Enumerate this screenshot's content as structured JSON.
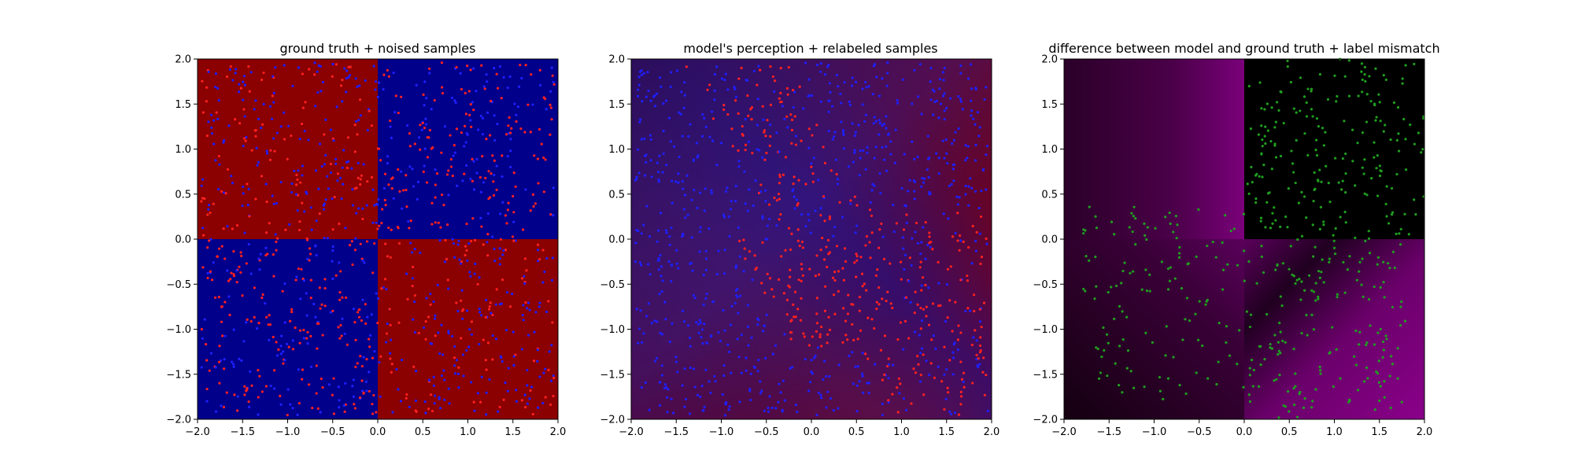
{
  "chart_data": [
    {
      "type": "heatmap",
      "title": "ground truth + noised samples",
      "xlabel": "",
      "ylabel": "",
      "xlim": [
        -2.0,
        2.0
      ],
      "ylim": [
        -2.0,
        2.0
      ],
      "xticks": [
        "−2.0",
        "−1.5",
        "−1.0",
        "−0.5",
        "0.0",
        "0.5",
        "1.0",
        "1.5",
        "2.0"
      ],
      "yticks": [
        "−2.0",
        "−1.5",
        "−1.0",
        "−0.5",
        "0.0",
        "0.5",
        "1.0",
        "1.5",
        "2.0"
      ],
      "grid": false,
      "background": {
        "description_free_regions": [
          {
            "x": [
              0,
              2
            ],
            "y": [
              0,
              2
            ],
            "color": "#00008b"
          },
          {
            "x": [
              -2,
              0
            ],
            "y": [
              -2,
              0
            ],
            "color": "#00008b"
          },
          {
            "x": [
              -2,
              0
            ],
            "y": [
              0,
              2
            ],
            "color": "#8b0000"
          },
          {
            "x": [
              0,
              2
            ],
            "y": [
              -2,
              0
            ],
            "color": "#8b0000"
          }
        ]
      },
      "series": [
        {
          "color": "#1f1fff",
          "values": "blue samples, approx. 700 points"
        },
        {
          "color": "#ff2020",
          "values": "red samples, approx. 600 points"
        }
      ]
    },
    {
      "type": "heatmap",
      "title": "model's perception + relabeled samples",
      "xlabel": "",
      "ylabel": "",
      "xlim": [
        -2.0,
        2.0
      ],
      "ylim": [
        -2.0,
        2.0
      ],
      "xticks": [
        "−2.0",
        "−1.5",
        "−1.0",
        "−0.5",
        "0.0",
        "0.5",
        "1.0",
        "1.5",
        "2.0"
      ],
      "yticks": [
        "−2.0",
        "−1.5",
        "−1.0",
        "−0.5",
        "0.0",
        "0.5",
        "1.0",
        "1.5",
        "2.0"
      ],
      "grid": false,
      "colors": {
        "blue": "#2a0d6a",
        "red": "#8b0000"
      },
      "series": [
        {
          "color": "#1f1fff",
          "values": "blue samples"
        },
        {
          "color": "#ff2020",
          "values": "red samples"
        }
      ]
    },
    {
      "type": "heatmap",
      "title": "difference between model and ground truth + label mismatch",
      "xlabel": "",
      "ylabel": "",
      "xlim": [
        -2.0,
        2.0
      ],
      "ylim": [
        -2.0,
        2.0
      ],
      "xticks": [
        "−2.0",
        "−1.5",
        "−1.0",
        "−0.5",
        "0.0",
        "0.5",
        "1.0",
        "1.5",
        "2.0"
      ],
      "yticks": [
        "−2.0",
        "−1.5",
        "−1.0",
        "−0.5",
        "0.0",
        "0.5",
        "1.0",
        "1.5",
        "2.0"
      ],
      "grid": false,
      "colors": {
        "magenta": "#800080",
        "black": "#000000"
      },
      "series": [
        {
          "color": "#1f9f1f",
          "values": "green mismatch samples"
        }
      ]
    }
  ]
}
